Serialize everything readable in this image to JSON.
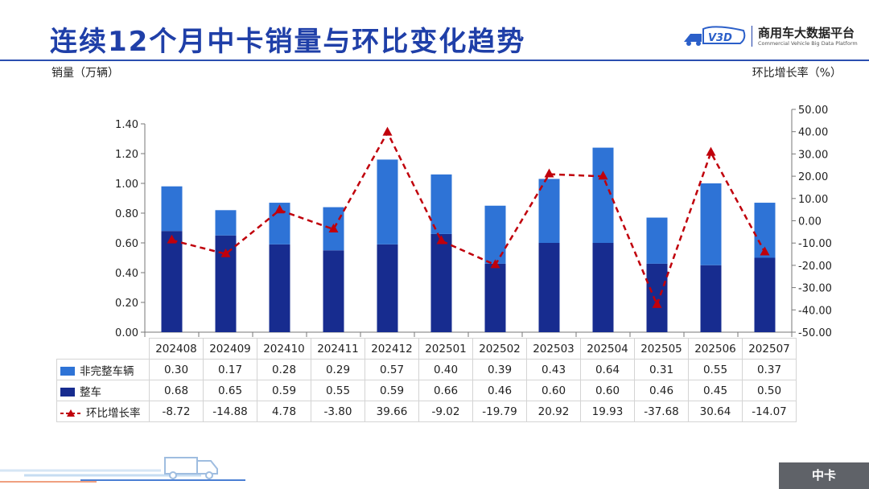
{
  "header": {
    "title": "连续12个月中卡销量与环比变化趋势",
    "logo_cn": "商用车大数据平台",
    "logo_en": "Commercial Vehicle Big Data Platform",
    "logo_mark": "V3D"
  },
  "axis_titles": {
    "left": "销量（万辆）",
    "right": "环比增长率（%）"
  },
  "footer": {
    "tag": "中卡"
  },
  "colors": {
    "non_complete": "#2e73d6",
    "complete": "#172c8f",
    "growth": "#c0000b",
    "title": "#1f3fa8"
  },
  "chart_data": {
    "type": "bar",
    "stacked": true,
    "categories": [
      "202408",
      "202409",
      "202410",
      "202411",
      "202412",
      "202501",
      "202502",
      "202503",
      "202504",
      "202505",
      "202506",
      "202507"
    ],
    "series": [
      {
        "name": "整车",
        "axis": "left",
        "type": "bar",
        "values": [
          0.68,
          0.65,
          0.59,
          0.55,
          0.59,
          0.66,
          0.46,
          0.6,
          0.6,
          0.46,
          0.45,
          0.5
        ]
      },
      {
        "name": "非完整车辆",
        "axis": "left",
        "type": "bar",
        "values": [
          0.3,
          0.17,
          0.28,
          0.29,
          0.57,
          0.4,
          0.39,
          0.43,
          0.64,
          0.31,
          0.55,
          0.37
        ]
      },
      {
        "name": "环比增长率",
        "axis": "right",
        "type": "line",
        "values": [
          -8.72,
          -14.88,
          4.78,
          -3.8,
          39.66,
          -9.02,
          -19.79,
          20.92,
          19.93,
          -37.68,
          30.64,
          -14.07
        ]
      }
    ],
    "left_axis": {
      "label": "销量（万辆）",
      "ylim": [
        0,
        1.4
      ],
      "ticks": [
        "0.00",
        "0.20",
        "0.40",
        "0.60",
        "0.80",
        "1.00",
        "1.20",
        "1.40"
      ]
    },
    "right_axis": {
      "label": "环比增长率（%）",
      "ylim": [
        -50,
        50
      ],
      "ticks": [
        "-50.00",
        "-40.00",
        "-30.00",
        "-20.00",
        "-10.00",
        "0.00",
        "10.00",
        "20.00",
        "30.00",
        "40.00",
        "50.00"
      ]
    },
    "grid": false,
    "legend": "data-table-below"
  },
  "table": {
    "rows": [
      {
        "label": "非完整车辆",
        "values": [
          "0.30",
          "0.17",
          "0.28",
          "0.29",
          "0.57",
          "0.40",
          "0.39",
          "0.43",
          "0.64",
          "0.31",
          "0.55",
          "0.37"
        ]
      },
      {
        "label": "整车",
        "values": [
          "0.68",
          "0.65",
          "0.59",
          "0.55",
          "0.59",
          "0.66",
          "0.46",
          "0.60",
          "0.60",
          "0.46",
          "0.45",
          "0.50"
        ]
      },
      {
        "label": "环比增长率",
        "values": [
          "-8.72",
          "-14.88",
          "4.78",
          "-3.80",
          "39.66",
          "-9.02",
          "-19.79",
          "20.92",
          "19.93",
          "-37.68",
          "30.64",
          "-14.07"
        ]
      }
    ]
  }
}
